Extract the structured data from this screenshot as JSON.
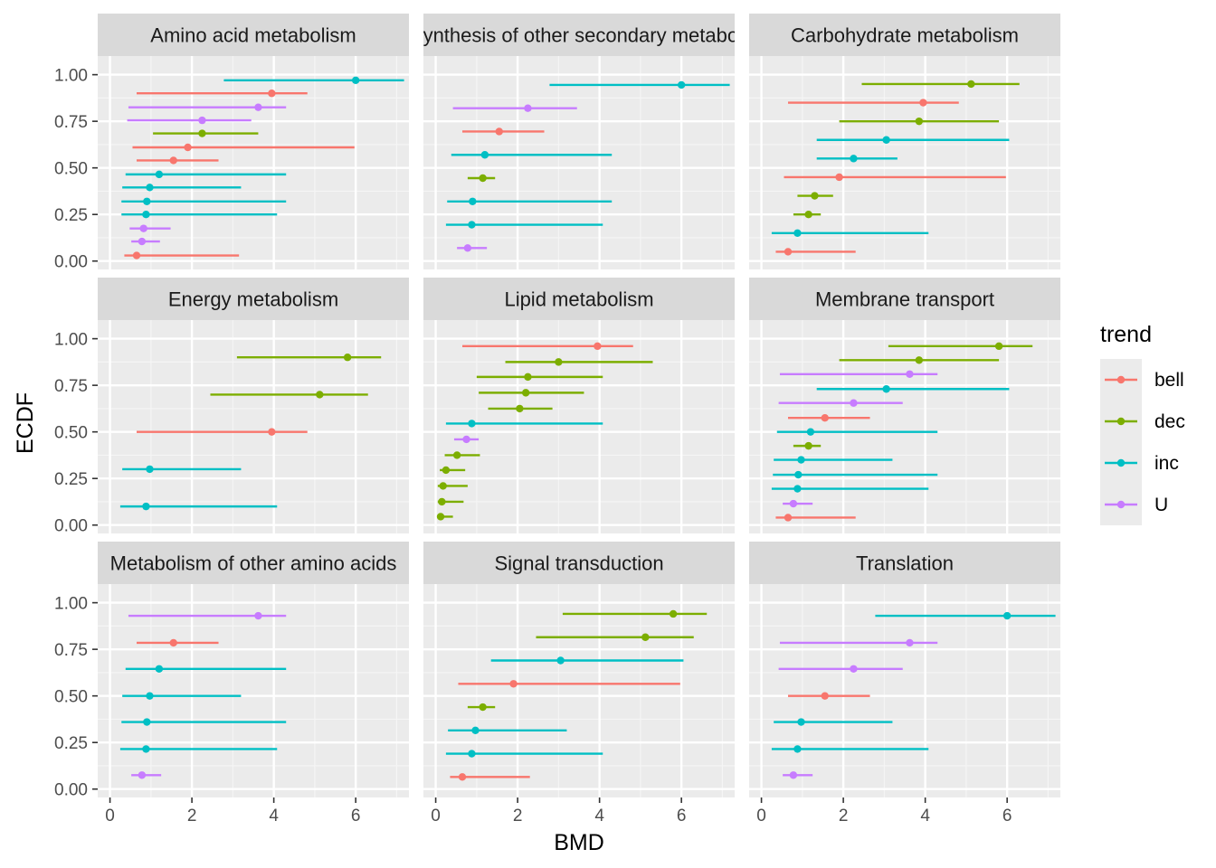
{
  "chart_data": {
    "type": "scatter",
    "xlabel": "BMD",
    "ylabel": "ECDF",
    "xlim": [
      -0.3,
      7.3
    ],
    "ylim": [
      -0.045,
      1.1
    ],
    "x_ticks": [
      0,
      2,
      4,
      6
    ],
    "x_tick_labels": [
      "0",
      "2",
      "4",
      "6"
    ],
    "y_ticks": [
      0,
      0.25,
      0.5,
      0.75,
      1.0
    ],
    "y_tick_labels": [
      "0.00",
      "0.25",
      "0.50",
      "0.75",
      "1.00"
    ],
    "grid": true,
    "legend": {
      "title": "trend",
      "placement": "right",
      "entries": [
        {
          "key": "bell",
          "label": "bell",
          "color": "#F8766D"
        },
        {
          "key": "dec",
          "label": "dec",
          "color": "#7CAE00"
        },
        {
          "key": "inc",
          "label": "inc",
          "color": "#00BFC4"
        },
        {
          "key": "U",
          "label": "U",
          "color": "#C77CFF"
        }
      ]
    },
    "facets": [
      {
        "title": "Amino acid metabolism",
        "points": [
          {
            "trend": "bell",
            "x": 0.65,
            "lo": 0.35,
            "hi": 3.15,
            "y": 0.03
          },
          {
            "trend": "U",
            "x": 0.78,
            "lo": 0.52,
            "hi": 1.22,
            "y": 0.105
          },
          {
            "trend": "U",
            "x": 0.82,
            "lo": 0.48,
            "hi": 1.48,
            "y": 0.175
          },
          {
            "trend": "inc",
            "x": 0.88,
            "lo": 0.28,
            "hi": 4.08,
            "y": 0.25
          },
          {
            "trend": "inc",
            "x": 0.9,
            "lo": 0.28,
            "hi": 4.3,
            "y": 0.32
          },
          {
            "trend": "inc",
            "x": 0.97,
            "lo": 0.3,
            "hi": 3.2,
            "y": 0.395
          },
          {
            "trend": "inc",
            "x": 1.2,
            "lo": 0.38,
            "hi": 4.3,
            "y": 0.465
          },
          {
            "trend": "bell",
            "x": 1.55,
            "lo": 0.65,
            "hi": 2.65,
            "y": 0.54
          },
          {
            "trend": "bell",
            "x": 1.9,
            "lo": 0.55,
            "hi": 5.97,
            "y": 0.61
          },
          {
            "trend": "dec",
            "x": 2.25,
            "lo": 1.05,
            "hi": 3.62,
            "y": 0.685
          },
          {
            "trend": "U",
            "x": 2.25,
            "lo": 0.42,
            "hi": 3.45,
            "y": 0.755
          },
          {
            "trend": "U",
            "x": 3.62,
            "lo": 0.45,
            "hi": 4.3,
            "y": 0.825
          },
          {
            "trend": "bell",
            "x": 3.95,
            "lo": 0.65,
            "hi": 4.82,
            "y": 0.9
          },
          {
            "trend": "inc",
            "x": 6.0,
            "lo": 2.78,
            "hi": 7.18,
            "y": 0.97
          }
        ]
      },
      {
        "title": "Biosynthesis of other secondary metabolites",
        "points": [
          {
            "trend": "U",
            "x": 0.78,
            "lo": 0.52,
            "hi": 1.25,
            "y": 0.07
          },
          {
            "trend": "inc",
            "x": 0.88,
            "lo": 0.25,
            "hi": 4.08,
            "y": 0.195
          },
          {
            "trend": "inc",
            "x": 0.9,
            "lo": 0.28,
            "hi": 4.3,
            "y": 0.32
          },
          {
            "trend": "dec",
            "x": 1.15,
            "lo": 0.78,
            "hi": 1.45,
            "y": 0.445
          },
          {
            "trend": "inc",
            "x": 1.2,
            "lo": 0.38,
            "hi": 4.3,
            "y": 0.57
          },
          {
            "trend": "bell",
            "x": 1.55,
            "lo": 0.65,
            "hi": 2.65,
            "y": 0.695
          },
          {
            "trend": "U",
            "x": 2.25,
            "lo": 0.42,
            "hi": 3.45,
            "y": 0.82
          },
          {
            "trend": "inc",
            "x": 6.0,
            "lo": 2.78,
            "hi": 7.18,
            "y": 0.945
          }
        ]
      },
      {
        "title": "Carbohydrate metabolism",
        "points": [
          {
            "trend": "bell",
            "x": 0.65,
            "lo": 0.35,
            "hi": 2.3,
            "y": 0.05
          },
          {
            "trend": "inc",
            "x": 0.88,
            "lo": 0.25,
            "hi": 4.08,
            "y": 0.15
          },
          {
            "trend": "dec",
            "x": 1.15,
            "lo": 0.78,
            "hi": 1.45,
            "y": 0.25
          },
          {
            "trend": "dec",
            "x": 1.3,
            "lo": 0.88,
            "hi": 1.75,
            "y": 0.35
          },
          {
            "trend": "bell",
            "x": 1.9,
            "lo": 0.55,
            "hi": 5.97,
            "y": 0.45
          },
          {
            "trend": "inc",
            "x": 2.25,
            "lo": 1.35,
            "hi": 3.32,
            "y": 0.55
          },
          {
            "trend": "inc",
            "x": 3.05,
            "lo": 1.35,
            "hi": 6.05,
            "y": 0.65
          },
          {
            "trend": "dec",
            "x": 3.85,
            "lo": 1.9,
            "hi": 5.8,
            "y": 0.75
          },
          {
            "trend": "bell",
            "x": 3.95,
            "lo": 0.65,
            "hi": 4.82,
            "y": 0.85
          },
          {
            "trend": "dec",
            "x": 5.12,
            "lo": 2.45,
            "hi": 6.3,
            "y": 0.95
          }
        ]
      },
      {
        "title": "Energy metabolism",
        "points": [
          {
            "trend": "inc",
            "x": 0.88,
            "lo": 0.25,
            "hi": 4.08,
            "y": 0.1
          },
          {
            "trend": "inc",
            "x": 0.97,
            "lo": 0.3,
            "hi": 3.2,
            "y": 0.3
          },
          {
            "trend": "bell",
            "x": 3.95,
            "lo": 0.65,
            "hi": 4.82,
            "y": 0.5
          },
          {
            "trend": "dec",
            "x": 5.12,
            "lo": 2.45,
            "hi": 6.3,
            "y": 0.7
          },
          {
            "trend": "dec",
            "x": 5.8,
            "lo": 3.1,
            "hi": 6.62,
            "y": 0.9
          }
        ]
      },
      {
        "title": "Lipid metabolism",
        "points": [
          {
            "trend": "dec",
            "x": 0.12,
            "lo": 0.05,
            "hi": 0.42,
            "y": 0.045
          },
          {
            "trend": "dec",
            "x": 0.15,
            "lo": 0.05,
            "hi": 0.68,
            "y": 0.125
          },
          {
            "trend": "dec",
            "x": 0.18,
            "lo": 0.05,
            "hi": 0.78,
            "y": 0.21
          },
          {
            "trend": "dec",
            "x": 0.25,
            "lo": 0.1,
            "hi": 0.72,
            "y": 0.295
          },
          {
            "trend": "dec",
            "x": 0.52,
            "lo": 0.22,
            "hi": 1.08,
            "y": 0.375
          },
          {
            "trend": "U",
            "x": 0.75,
            "lo": 0.45,
            "hi": 1.05,
            "y": 0.46
          },
          {
            "trend": "inc",
            "x": 0.88,
            "lo": 0.25,
            "hi": 4.08,
            "y": 0.545
          },
          {
            "trend": "dec",
            "x": 2.05,
            "lo": 1.28,
            "hi": 2.85,
            "y": 0.625
          },
          {
            "trend": "dec",
            "x": 2.2,
            "lo": 1.05,
            "hi": 3.62,
            "y": 0.71
          },
          {
            "trend": "dec",
            "x": 2.25,
            "lo": 1.0,
            "hi": 4.08,
            "y": 0.795
          },
          {
            "trend": "dec",
            "x": 3.0,
            "lo": 1.7,
            "hi": 5.3,
            "y": 0.875
          },
          {
            "trend": "bell",
            "x": 3.95,
            "lo": 0.65,
            "hi": 4.82,
            "y": 0.96
          }
        ]
      },
      {
        "title": "Membrane transport",
        "points": [
          {
            "trend": "bell",
            "x": 0.65,
            "lo": 0.35,
            "hi": 2.3,
            "y": 0.04
          },
          {
            "trend": "U",
            "x": 0.78,
            "lo": 0.52,
            "hi": 1.25,
            "y": 0.115
          },
          {
            "trend": "inc",
            "x": 0.88,
            "lo": 0.25,
            "hi": 4.08,
            "y": 0.195
          },
          {
            "trend": "inc",
            "x": 0.9,
            "lo": 0.28,
            "hi": 4.3,
            "y": 0.27
          },
          {
            "trend": "inc",
            "x": 0.97,
            "lo": 0.3,
            "hi": 3.2,
            "y": 0.35
          },
          {
            "trend": "dec",
            "x": 1.15,
            "lo": 0.78,
            "hi": 1.45,
            "y": 0.425
          },
          {
            "trend": "inc",
            "x": 1.2,
            "lo": 0.38,
            "hi": 4.3,
            "y": 0.5
          },
          {
            "trend": "bell",
            "x": 1.55,
            "lo": 0.65,
            "hi": 2.65,
            "y": 0.575
          },
          {
            "trend": "U",
            "x": 2.25,
            "lo": 0.42,
            "hi": 3.45,
            "y": 0.655
          },
          {
            "trend": "inc",
            "x": 3.05,
            "lo": 1.35,
            "hi": 6.05,
            "y": 0.73
          },
          {
            "trend": "U",
            "x": 3.62,
            "lo": 0.45,
            "hi": 4.3,
            "y": 0.81
          },
          {
            "trend": "dec",
            "x": 3.85,
            "lo": 1.9,
            "hi": 5.8,
            "y": 0.885
          },
          {
            "trend": "dec",
            "x": 5.8,
            "lo": 3.1,
            "hi": 6.62,
            "y": 0.96
          }
        ]
      },
      {
        "title": "Metabolism of other amino acids",
        "points": [
          {
            "trend": "U",
            "x": 0.78,
            "lo": 0.52,
            "hi": 1.25,
            "y": 0.075
          },
          {
            "trend": "inc",
            "x": 0.88,
            "lo": 0.25,
            "hi": 4.08,
            "y": 0.215
          },
          {
            "trend": "inc",
            "x": 0.9,
            "lo": 0.28,
            "hi": 4.3,
            "y": 0.36
          },
          {
            "trend": "inc",
            "x": 0.97,
            "lo": 0.3,
            "hi": 3.2,
            "y": 0.5
          },
          {
            "trend": "inc",
            "x": 1.2,
            "lo": 0.38,
            "hi": 4.3,
            "y": 0.645
          },
          {
            "trend": "bell",
            "x": 1.55,
            "lo": 0.65,
            "hi": 2.65,
            "y": 0.785
          },
          {
            "trend": "U",
            "x": 3.62,
            "lo": 0.45,
            "hi": 4.3,
            "y": 0.93
          }
        ]
      },
      {
        "title": "Signal transduction",
        "points": [
          {
            "trend": "bell",
            "x": 0.65,
            "lo": 0.35,
            "hi": 2.3,
            "y": 0.065
          },
          {
            "trend": "inc",
            "x": 0.88,
            "lo": 0.25,
            "hi": 4.08,
            "y": 0.19
          },
          {
            "trend": "inc",
            "x": 0.97,
            "lo": 0.3,
            "hi": 3.2,
            "y": 0.315
          },
          {
            "trend": "dec",
            "x": 1.15,
            "lo": 0.78,
            "hi": 1.45,
            "y": 0.44
          },
          {
            "trend": "bell",
            "x": 1.9,
            "lo": 0.55,
            "hi": 5.97,
            "y": 0.565
          },
          {
            "trend": "inc",
            "x": 3.05,
            "lo": 1.35,
            "hi": 6.05,
            "y": 0.69
          },
          {
            "trend": "dec",
            "x": 5.12,
            "lo": 2.45,
            "hi": 6.3,
            "y": 0.815
          },
          {
            "trend": "dec",
            "x": 5.8,
            "lo": 3.1,
            "hi": 6.62,
            "y": 0.94
          }
        ]
      },
      {
        "title": "Translation",
        "points": [
          {
            "trend": "U",
            "x": 0.78,
            "lo": 0.52,
            "hi": 1.25,
            "y": 0.075
          },
          {
            "trend": "inc",
            "x": 0.88,
            "lo": 0.25,
            "hi": 4.08,
            "y": 0.215
          },
          {
            "trend": "inc",
            "x": 0.97,
            "lo": 0.3,
            "hi": 3.2,
            "y": 0.36
          },
          {
            "trend": "bell",
            "x": 1.55,
            "lo": 0.65,
            "hi": 2.65,
            "y": 0.5
          },
          {
            "trend": "U",
            "x": 2.25,
            "lo": 0.42,
            "hi": 3.45,
            "y": 0.645
          },
          {
            "trend": "U",
            "x": 3.62,
            "lo": 0.45,
            "hi": 4.3,
            "y": 0.785
          },
          {
            "trend": "inc",
            "x": 6.0,
            "lo": 2.78,
            "hi": 7.18,
            "y": 0.93
          }
        ]
      }
    ]
  }
}
